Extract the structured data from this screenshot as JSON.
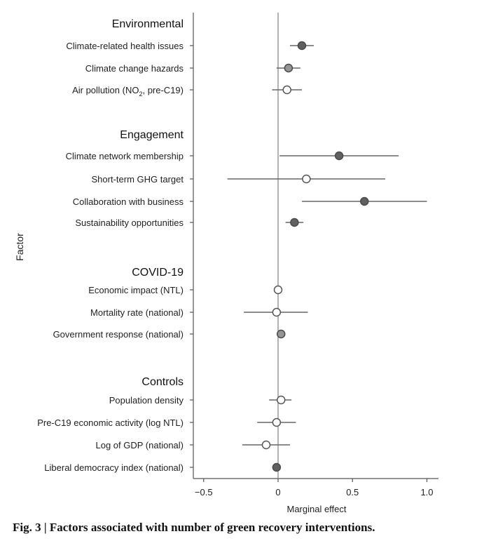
{
  "chart_data": {
    "type": "forest",
    "xlabel": "Marginal effect",
    "ylabel": "Factor",
    "xlim": [
      -0.55,
      1.07
    ],
    "xticks": [
      -0.5,
      0,
      0.5,
      1.0
    ],
    "xtick_labels": [
      "−0.5",
      "0",
      "0.5",
      "1.0"
    ],
    "reference_line": 0,
    "marker_styles": {
      "filled_dark": "#5f6062",
      "filled_gray": "#959596",
      "open": "#ffffff"
    },
    "groups": [
      {
        "name": "Environmental",
        "items": [
          {
            "label": "Climate-related health issues",
            "effect": 0.16,
            "ci": [
              0.08,
              0.24
            ],
            "marker": "filled_dark"
          },
          {
            "label": "Climate change hazards",
            "effect": 0.07,
            "ci": [
              -0.01,
              0.15
            ],
            "marker": "filled_gray"
          },
          {
            "label": "Air pollution (NO",
            "sub": "2",
            "label_suffix": ", pre-C19)",
            "effect": 0.06,
            "ci": [
              -0.04,
              0.16
            ],
            "marker": "open"
          }
        ]
      },
      {
        "name": "Engagement",
        "items": [
          {
            "label": "Climate network membership",
            "effect": 0.41,
            "ci": [
              0.01,
              0.81
            ],
            "marker": "filled_dark"
          },
          {
            "label": "Short-term GHG target",
            "effect": 0.19,
            "ci": [
              -0.34,
              0.72
            ],
            "marker": "open"
          },
          {
            "label": "Collaboration with business",
            "effect": 0.58,
            "ci": [
              0.16,
              1.0
            ],
            "marker": "filled_dark"
          },
          {
            "label": "Sustainability opportunities",
            "effect": 0.11,
            "ci": [
              0.05,
              0.17
            ],
            "marker": "filled_dark"
          }
        ]
      },
      {
        "name": "COVID-19",
        "items": [
          {
            "label": "Economic impact (NTL)",
            "effect": 0.0,
            "ci": [
              -0.01,
              0.01
            ],
            "marker": "open"
          },
          {
            "label": "Mortality rate (national)",
            "effect": -0.01,
            "ci": [
              -0.23,
              0.2
            ],
            "marker": "open"
          },
          {
            "label": "Government response (national)",
            "effect": 0.02,
            "ci": [
              0.0,
              0.04
            ],
            "marker": "filled_gray"
          }
        ]
      },
      {
        "name": "Controls",
        "items": [
          {
            "label": "Population density",
            "effect": 0.02,
            "ci": [
              -0.06,
              0.09
            ],
            "marker": "open"
          },
          {
            "label": "Pre-C19 economic activity (log NTL)",
            "effect": -0.01,
            "ci": [
              -0.14,
              0.12
            ],
            "marker": "open"
          },
          {
            "label": "Log of GDP (national)",
            "effect": -0.08,
            "ci": [
              -0.24,
              0.08
            ],
            "marker": "open"
          },
          {
            "label": "Liberal democracy index (national)",
            "effect": -0.01,
            "ci": [
              -0.02,
              0.0
            ],
            "marker": "filled_dark"
          }
        ]
      }
    ]
  },
  "caption": {
    "prefix": "Fig. 3 | ",
    "text": "Factors associated with number of green recovery interventions."
  }
}
